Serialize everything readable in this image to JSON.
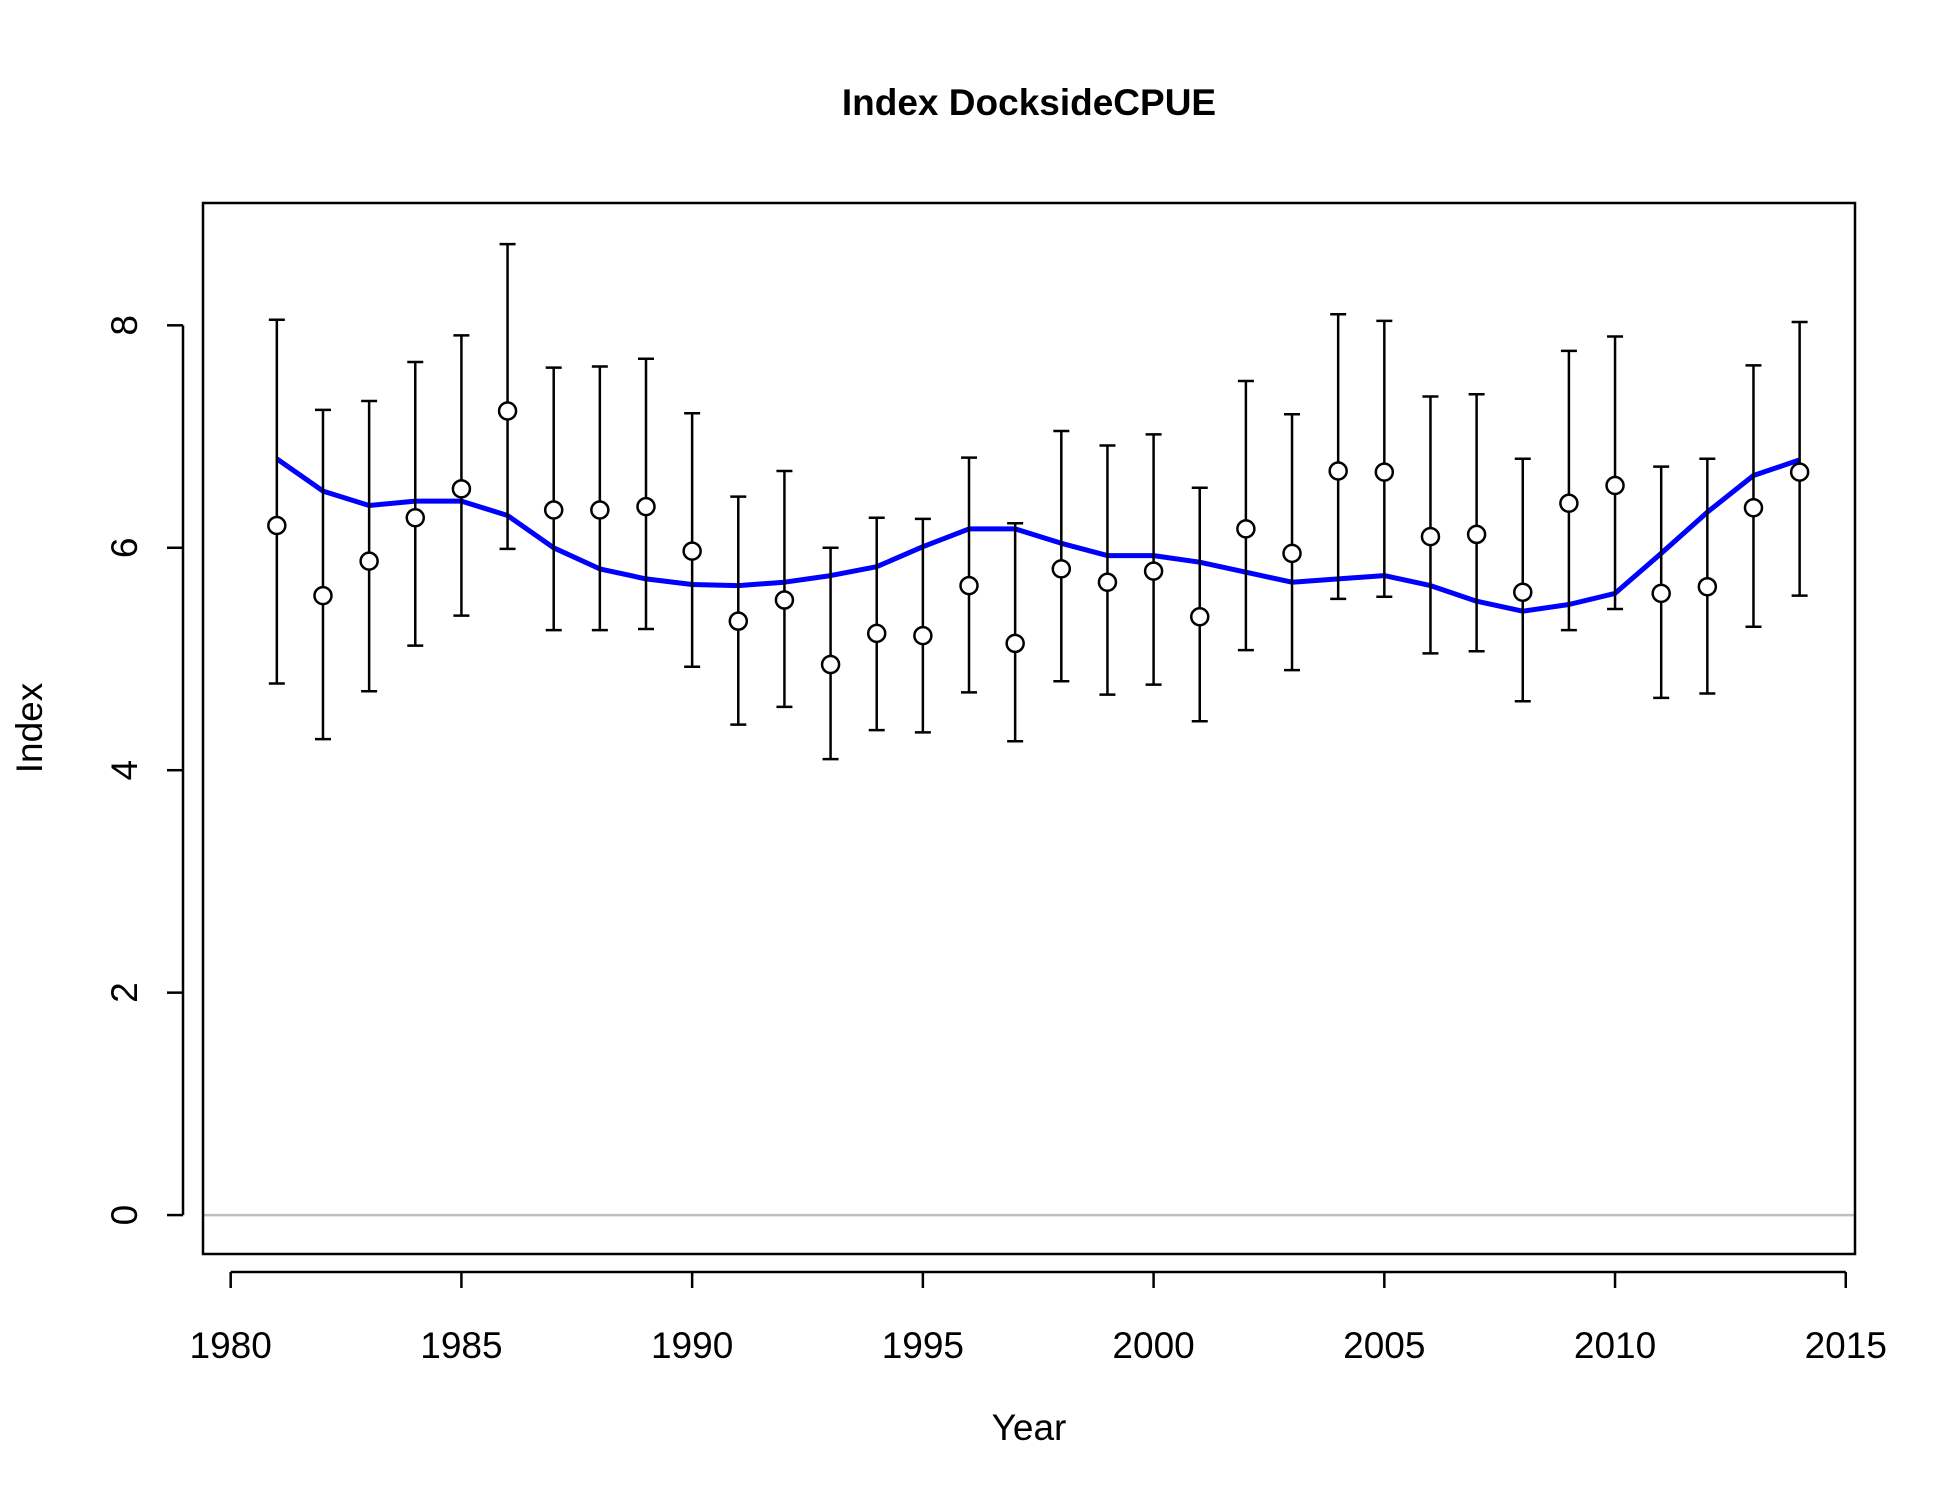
{
  "chart_data": {
    "type": "scatter",
    "title": "Index DocksideCPUE",
    "xlabel": "Year",
    "ylabel": "Index",
    "xlim": [
      1979.4,
      2015.2
    ],
    "ylim": [
      -0.35,
      9.1
    ],
    "x_ticks": [
      1980,
      1985,
      1990,
      1995,
      2000,
      2005,
      2010,
      2015
    ],
    "y_ticks": [
      0,
      2,
      4,
      6,
      8
    ],
    "reference_line_y": 0,
    "grid": false,
    "colors": {
      "observed": "#000000",
      "fit": "#0000ff",
      "reference": "#bebebe"
    },
    "observed": {
      "x": [
        1981,
        1982,
        1983,
        1984,
        1985,
        1986,
        1987,
        1988,
        1989,
        1990,
        1991,
        1992,
        1993,
        1994,
        1995,
        1996,
        1997,
        1998,
        1999,
        2000,
        2001,
        2002,
        2003,
        2004,
        2005,
        2006,
        2007,
        2008,
        2009,
        2010,
        2011,
        2012,
        2013,
        2014
      ],
      "y": [
        6.2,
        5.57,
        5.88,
        6.27,
        6.53,
        7.23,
        6.34,
        6.34,
        6.37,
        5.97,
        5.34,
        5.53,
        4.95,
        5.23,
        5.21,
        5.66,
        5.14,
        5.81,
        5.69,
        5.79,
        5.38,
        6.17,
        5.95,
        6.69,
        6.68,
        6.1,
        6.12,
        5.6,
        6.4,
        6.56,
        5.59,
        5.65,
        6.36,
        6.68
      ],
      "lower": [
        4.78,
        4.28,
        4.71,
        5.12,
        5.39,
        5.99,
        5.26,
        5.26,
        5.27,
        4.93,
        4.41,
        4.57,
        4.1,
        4.36,
        4.34,
        4.7,
        4.26,
        4.8,
        4.68,
        4.77,
        4.44,
        5.08,
        4.9,
        5.54,
        5.56,
        5.05,
        5.07,
        4.62,
        5.26,
        5.45,
        4.65,
        4.69,
        5.29,
        5.57
      ],
      "upper": [
        8.05,
        7.24,
        7.32,
        7.67,
        7.91,
        8.73,
        7.62,
        7.63,
        7.7,
        7.21,
        6.46,
        6.69,
        6.0,
        6.27,
        6.26,
        6.81,
        6.22,
        7.05,
        6.92,
        7.02,
        6.54,
        7.5,
        7.2,
        8.1,
        8.04,
        7.36,
        7.38,
        6.8,
        7.77,
        7.9,
        6.73,
        6.8,
        7.64,
        8.03
      ]
    },
    "fitted": {
      "x": [
        1981,
        1982,
        1983,
        1984,
        1985,
        1986,
        1987,
        1988,
        1989,
        1990,
        1991,
        1992,
        1993,
        1994,
        1995,
        1996,
        1997,
        1998,
        1999,
        2000,
        2001,
        2002,
        2003,
        2004,
        2005,
        2006,
        2007,
        2008,
        2009,
        2010,
        2011,
        2012,
        2013,
        2014
      ],
      "y": [
        6.8,
        6.51,
        6.38,
        6.42,
        6.42,
        6.29,
        6.0,
        5.81,
        5.72,
        5.67,
        5.66,
        5.69,
        5.75,
        5.83,
        6.01,
        6.17,
        6.17,
        6.04,
        5.93,
        5.93,
        5.87,
        5.78,
        5.69,
        5.72,
        5.75,
        5.66,
        5.52,
        5.43,
        5.49,
        5.59,
        5.95,
        6.32,
        6.65,
        6.79
      ]
    }
  }
}
